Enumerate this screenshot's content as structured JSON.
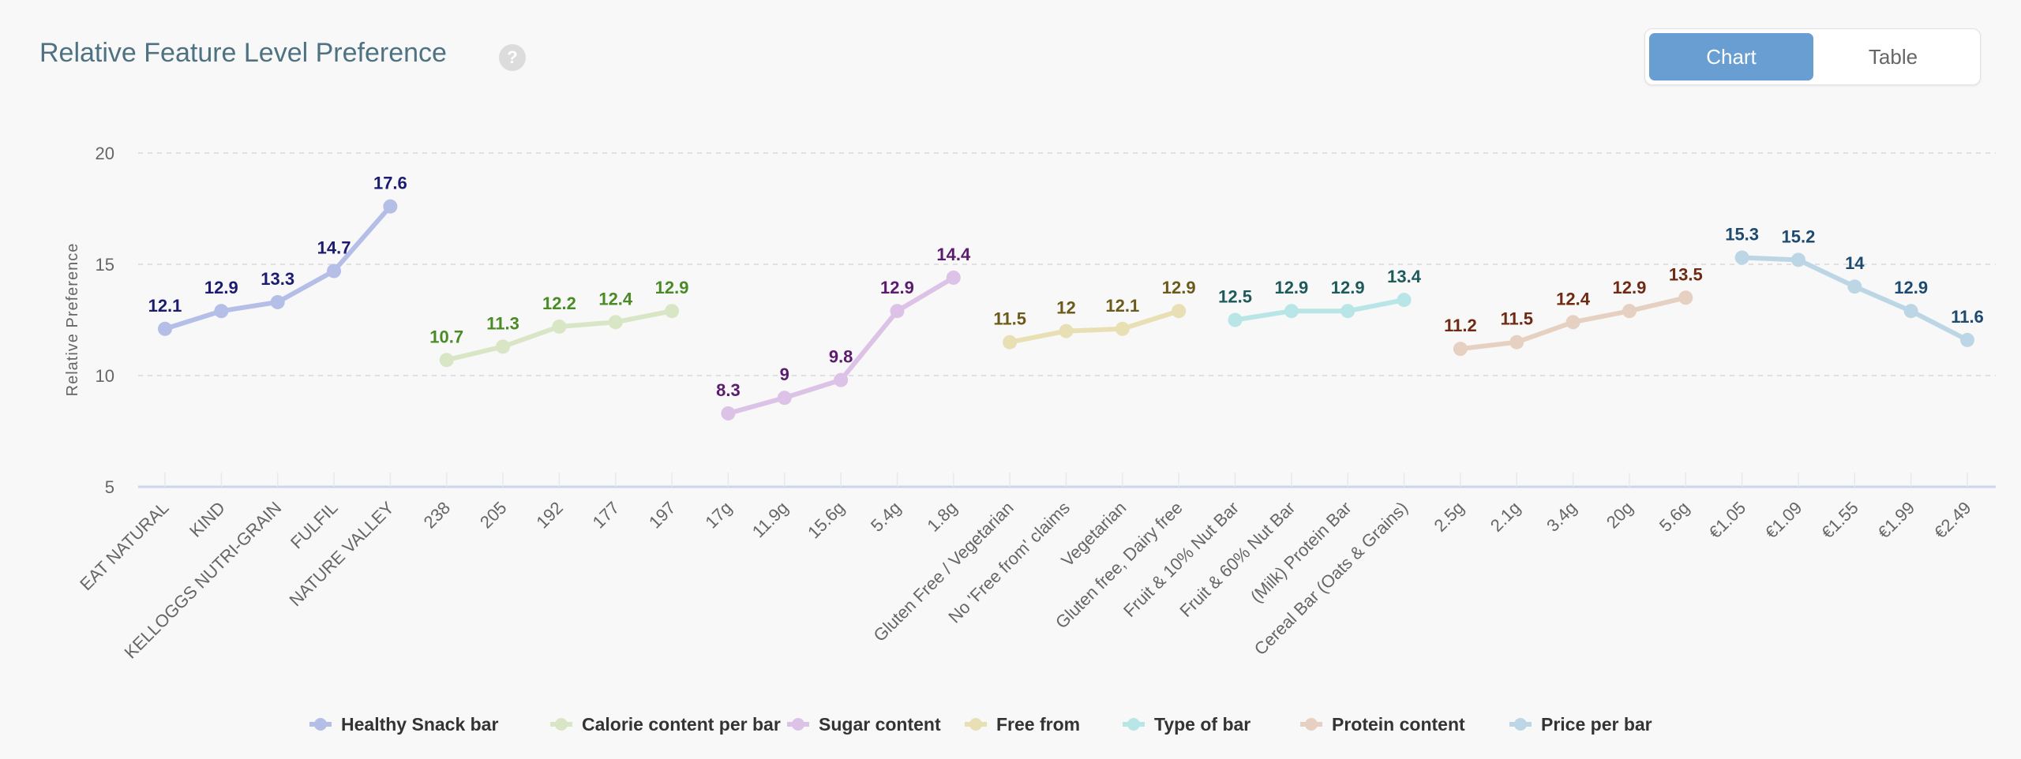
{
  "header": {
    "title": "Relative Feature Level Preference",
    "help_icon": "?"
  },
  "toggle": {
    "chart_label": "Chart",
    "table_label": "Table",
    "selected": "Chart"
  },
  "chart_data": {
    "type": "line",
    "title": "Relative Feature Level Preference",
    "xlabel": "",
    "ylabel": "Relative Preference",
    "ylim": [
      5,
      20
    ],
    "yticks": [
      5,
      10,
      15,
      20
    ],
    "grid": true,
    "legend_position": "bottom",
    "series": [
      {
        "name": "Healthy Snack bar",
        "color": "#b4bee6",
        "label_color": "#1b1b70",
        "categories": [
          "EAT NATURAL",
          "KIND",
          "KELLOGGS NUTRI-GRAIN",
          "FULFIL",
          "NATURE VALLEY"
        ],
        "values": [
          12.1,
          12.9,
          13.3,
          14.7,
          17.6
        ]
      },
      {
        "name": "Calorie content per bar",
        "color": "#d8e6c6",
        "label_color": "#4b8b26",
        "categories": [
          "238",
          "205",
          "192",
          "177",
          "197"
        ],
        "values": [
          10.7,
          11.3,
          12.2,
          12.4,
          12.9
        ]
      },
      {
        "name": "Sugar content",
        "color": "#dcc2e6",
        "label_color": "#5b1b6e",
        "categories": [
          "17g",
          "11.9g",
          "15.6g",
          "5.4g",
          "1.8g"
        ],
        "values": [
          8.3,
          9,
          9.8,
          12.9,
          14.4
        ]
      },
      {
        "name": "Free from",
        "color": "#e8e0b4",
        "label_color": "#6b5a1a",
        "categories": [
          "Gluten Free / Vegetarian",
          "No 'Free from' claims",
          "Vegetarian",
          "Gluten free, Dairy free"
        ],
        "values": [
          11.5,
          12,
          12.1,
          12.9
        ]
      },
      {
        "name": "Type of bar",
        "color": "#b8e6e6",
        "label_color": "#1e5a5a",
        "categories": [
          "Fruit & 10% Nut Bar",
          "Fruit & 60% Nut Bar",
          "(Milk) Protein Bar",
          "Cereal Bar (Oats & Grains)"
        ],
        "values": [
          12.5,
          12.9,
          12.9,
          13.4
        ]
      },
      {
        "name": "Protein content",
        "color": "#e6d0c2",
        "label_color": "#6e2a12",
        "categories": [
          "2.5g",
          "2.1g",
          "3.4g",
          "20g",
          "5.6g"
        ],
        "values": [
          11.2,
          11.5,
          12.4,
          12.9,
          13.5
        ]
      },
      {
        "name": "Price per bar",
        "color": "#bcd6e6",
        "label_color": "#1e4a70",
        "categories": [
          "€1.05",
          "€1.09",
          "€1.55",
          "€1.99",
          "€2.49"
        ],
        "values": [
          15.3,
          15.2,
          14,
          12.9,
          11.6
        ]
      }
    ]
  }
}
